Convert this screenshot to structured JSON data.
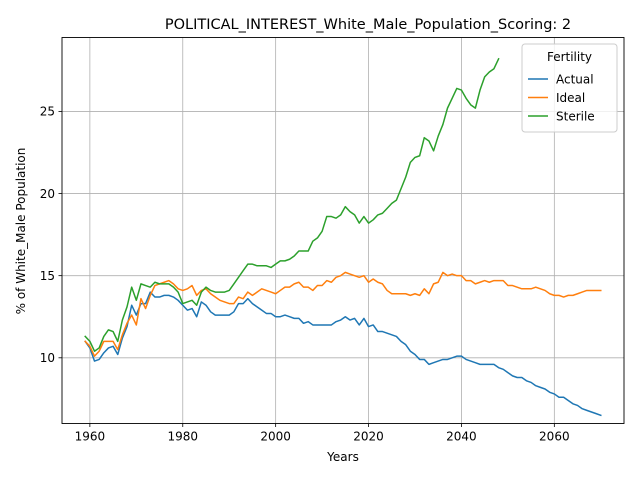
{
  "chart_data": {
    "type": "line",
    "title": "POLITICAL_INTEREST_White_Male_Population_Scoring: 2",
    "xlabel": "Years",
    "ylabel": "% of White_Male Population",
    "xlim": [
      1954,
      2075
    ],
    "ylim": [
      6.0,
      29.5
    ],
    "xticks": [
      1960,
      1980,
      2000,
      2020,
      2040,
      2060
    ],
    "yticks": [
      10,
      15,
      20,
      25
    ],
    "grid": true,
    "legend": {
      "title": "Fertility",
      "placement": "top-right"
    },
    "series": [
      {
        "name": "Actual",
        "color": "#1f77b4",
        "x": [
          1959,
          1960,
          1961,
          1962,
          1963,
          1964,
          1965,
          1966,
          1967,
          1968,
          1969,
          1970,
          1971,
          1972,
          1973,
          1974,
          1975,
          1976,
          1977,
          1978,
          1979,
          1980,
          1981,
          1982,
          1983,
          1984,
          1985,
          1986,
          1987,
          1988,
          1989,
          1990,
          1991,
          1992,
          1993,
          1994,
          1995,
          1996,
          1997,
          1998,
          1999,
          2000,
          2001,
          2002,
          2003,
          2004,
          2005,
          2006,
          2007,
          2008,
          2009,
          2010,
          2011,
          2012,
          2013,
          2014,
          2015,
          2016,
          2017,
          2018,
          2019,
          2020,
          2021,
          2022,
          2023,
          2024,
          2025,
          2026,
          2027,
          2028,
          2029,
          2030,
          2031,
          2032,
          2033,
          2034,
          2035,
          2036,
          2037,
          2038,
          2039,
          2040,
          2041,
          2042,
          2043,
          2044,
          2045,
          2046,
          2047,
          2048,
          2049,
          2050,
          2051,
          2052,
          2053,
          2054,
          2055,
          2056,
          2057,
          2058,
          2059,
          2060,
          2061,
          2062,
          2063,
          2064,
          2065,
          2066,
          2067,
          2068,
          2069,
          2070
        ],
        "values": [
          11.0,
          10.6,
          9.8,
          9.9,
          10.3,
          10.6,
          10.7,
          10.2,
          11.2,
          11.9,
          13.2,
          12.6,
          13.3,
          13.3,
          14.0,
          13.7,
          13.7,
          13.8,
          13.8,
          13.7,
          13.5,
          13.2,
          12.9,
          13.0,
          12.5,
          13.4,
          13.2,
          12.8,
          12.6,
          12.6,
          12.6,
          12.6,
          12.8,
          13.3,
          13.3,
          13.6,
          13.3,
          13.1,
          12.9,
          12.7,
          12.7,
          12.5,
          12.5,
          12.6,
          12.5,
          12.4,
          12.4,
          12.1,
          12.2,
          12.0,
          12.0,
          12.0,
          12.0,
          12.0,
          12.2,
          12.3,
          12.5,
          12.3,
          12.4,
          12.0,
          12.4,
          11.9,
          12.0,
          11.6,
          11.6,
          11.5,
          11.4,
          11.3,
          11.0,
          10.8,
          10.4,
          10.2,
          9.9,
          9.9,
          9.6,
          9.7,
          9.8,
          9.9,
          9.9,
          10.0,
          10.1,
          10.1,
          9.9,
          9.8,
          9.7,
          9.6,
          9.6,
          9.6,
          9.6,
          9.4,
          9.3,
          9.1,
          8.9,
          8.8,
          8.8,
          8.6,
          8.5,
          8.3,
          8.2,
          8.1,
          7.9,
          7.8,
          7.6,
          7.6,
          7.4,
          7.2,
          7.1,
          6.9,
          6.8,
          6.7,
          6.6,
          6.5
        ]
      },
      {
        "name": "Ideal",
        "color": "#ff7f0e",
        "x": [
          1959,
          1960,
          1961,
          1962,
          1963,
          1964,
          1965,
          1966,
          1967,
          1968,
          1969,
          1970,
          1971,
          1972,
          1973,
          1974,
          1975,
          1976,
          1977,
          1978,
          1979,
          1980,
          1981,
          1982,
          1983,
          1984,
          1985,
          1986,
          1987,
          1988,
          1989,
          1990,
          1991,
          1992,
          1993,
          1994,
          1995,
          1996,
          1997,
          1998,
          1999,
          2000,
          2001,
          2002,
          2003,
          2004,
          2005,
          2006,
          2007,
          2008,
          2009,
          2010,
          2011,
          2012,
          2013,
          2014,
          2015,
          2016,
          2017,
          2018,
          2019,
          2020,
          2021,
          2022,
          2023,
          2024,
          2025,
          2026,
          2027,
          2028,
          2029,
          2030,
          2031,
          2032,
          2033,
          2034,
          2035,
          2036,
          2037,
          2038,
          2039,
          2040,
          2041,
          2042,
          2043,
          2044,
          2045,
          2046,
          2047,
          2048,
          2049,
          2050,
          2051,
          2052,
          2053,
          2054,
          2055,
          2056,
          2057,
          2058,
          2059,
          2060,
          2061,
          2062,
          2063,
          2064,
          2065,
          2066,
          2067,
          2068,
          2069,
          2070
        ],
        "values": [
          11.0,
          10.7,
          10.1,
          10.4,
          11.0,
          11.0,
          11.0,
          10.5,
          11.4,
          12.1,
          12.6,
          12.0,
          13.6,
          13.0,
          13.8,
          14.4,
          14.5,
          14.6,
          14.7,
          14.5,
          14.2,
          14.1,
          14.2,
          14.4,
          13.8,
          14.1,
          14.2,
          13.9,
          13.7,
          13.5,
          13.4,
          13.3,
          13.3,
          13.7,
          13.6,
          14.0,
          13.8,
          14.0,
          14.2,
          14.1,
          14.0,
          13.9,
          14.1,
          14.3,
          14.3,
          14.5,
          14.6,
          14.3,
          14.3,
          14.1,
          14.4,
          14.4,
          14.7,
          14.6,
          14.9,
          15.0,
          15.2,
          15.1,
          15.0,
          14.9,
          15.0,
          14.6,
          14.8,
          14.6,
          14.5,
          14.1,
          13.9,
          13.9,
          13.9,
          13.9,
          13.8,
          13.9,
          13.8,
          14.2,
          13.9,
          14.5,
          14.6,
          15.2,
          15.0,
          15.1,
          15.0,
          15.0,
          14.7,
          14.7,
          14.5,
          14.6,
          14.7,
          14.6,
          14.7,
          14.7,
          14.7,
          14.4,
          14.4,
          14.3,
          14.2,
          14.2,
          14.2,
          14.3,
          14.2,
          14.1,
          13.9,
          13.8,
          13.8,
          13.7,
          13.8,
          13.8,
          13.9,
          14.0,
          14.1,
          14.1,
          14.1,
          14.1
        ]
      },
      {
        "name": "Sterile",
        "color": "#2ca02c",
        "x": [
          1959,
          1960,
          1961,
          1962,
          1963,
          1964,
          1965,
          1966,
          1967,
          1968,
          1969,
          1970,
          1971,
          1972,
          1973,
          1974,
          1975,
          1976,
          1977,
          1978,
          1979,
          1980,
          1981,
          1982,
          1983,
          1984,
          1985,
          1986,
          1987,
          1988,
          1989,
          1990,
          1991,
          1992,
          1993,
          1994,
          1995,
          1996,
          1997,
          1998,
          1999,
          2000,
          2001,
          2002,
          2003,
          2004,
          2005,
          2006,
          2007,
          2008,
          2009,
          2010,
          2011,
          2012,
          2013,
          2014,
          2015,
          2016,
          2017,
          2018,
          2019,
          2020,
          2021,
          2022,
          2023,
          2024,
          2025,
          2026,
          2027,
          2028,
          2029,
          2030,
          2031,
          2032,
          2033,
          2034,
          2035,
          2036,
          2037,
          2038,
          2039,
          2040,
          2041,
          2042,
          2043,
          2044,
          2045,
          2046,
          2047,
          2048
        ],
        "values": [
          11.3,
          11.0,
          10.4,
          10.6,
          11.3,
          11.7,
          11.6,
          11.0,
          12.3,
          13.1,
          14.3,
          13.5,
          14.5,
          14.4,
          14.3,
          14.6,
          14.5,
          14.5,
          14.5,
          14.3,
          14.0,
          13.3,
          13.4,
          13.5,
          13.2,
          14.0,
          14.3,
          14.1,
          14.0,
          14.0,
          14.0,
          14.1,
          14.5,
          14.9,
          15.3,
          15.7,
          15.7,
          15.6,
          15.6,
          15.6,
          15.5,
          15.7,
          15.9,
          15.9,
          16.0,
          16.2,
          16.5,
          16.5,
          16.5,
          17.1,
          17.3,
          17.7,
          18.6,
          18.6,
          18.5,
          18.7,
          19.2,
          18.9,
          18.7,
          18.2,
          18.6,
          18.2,
          18.4,
          18.7,
          18.8,
          19.1,
          19.4,
          19.6,
          20.3,
          21.0,
          21.9,
          22.2,
          22.3,
          23.4,
          23.2,
          22.6,
          23.5,
          24.2,
          25.2,
          25.8,
          26.4,
          26.3,
          25.8,
          25.4,
          25.2,
          26.3,
          27.1,
          27.4,
          27.6,
          28.2
        ]
      }
    ]
  }
}
